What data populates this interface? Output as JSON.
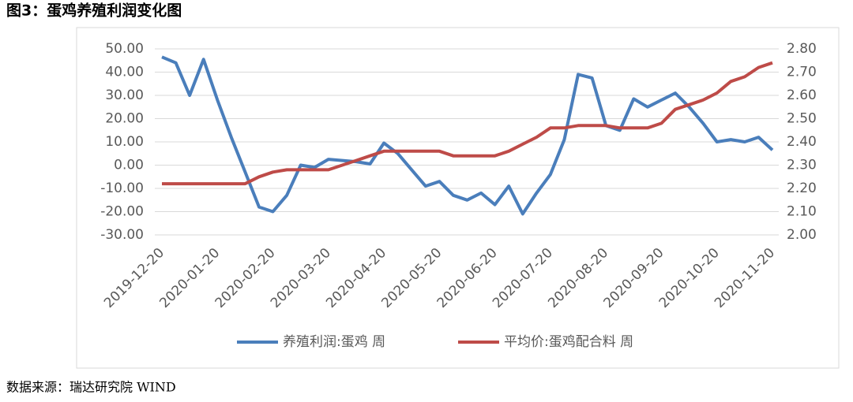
{
  "title": "图3：蛋鸡养殖利润变化图",
  "source": "数据来源：瑞达研究院 WIND",
  "chart_data": {
    "type": "line",
    "categories": [
      "2019-12-20",
      null,
      null,
      null,
      "2020-01-20",
      null,
      null,
      null,
      "2020-02-20",
      null,
      null,
      null,
      "2020-03-20",
      null,
      null,
      null,
      "2020-04-20",
      null,
      null,
      null,
      "2020-05-20",
      null,
      null,
      null,
      "2020-06-20",
      null,
      null,
      null,
      "2020-07-20",
      null,
      null,
      null,
      "2020-08-20",
      null,
      null,
      null,
      "2020-09-20",
      null,
      null,
      null,
      "2020-10-20",
      null,
      null,
      null,
      "2020-11-20"
    ],
    "series": [
      {
        "name": "养殖利润:蛋鸡 周",
        "color": "#4a7ebb",
        "axis": "y",
        "values": [
          46.5,
          44,
          30,
          45.5,
          28,
          12,
          -3,
          -18,
          -20,
          -13,
          0,
          -1,
          2.5,
          2,
          1.5,
          0.5,
          9.5,
          5,
          -2,
          -9,
          -7,
          -13,
          -15,
          -12,
          -17,
          -9,
          -21,
          -12,
          -4,
          11,
          39,
          37.5,
          17,
          15,
          28.5,
          25,
          28,
          31,
          25,
          18,
          10,
          11,
          10,
          12,
          6.5
        ]
      },
      {
        "name": "平均价:蛋鸡配合料 周",
        "color": "#be4b48",
        "axis": "y2",
        "values": [
          2.22,
          2.22,
          2.22,
          2.22,
          2.22,
          2.22,
          2.22,
          2.25,
          2.27,
          2.28,
          2.28,
          2.28,
          2.28,
          2.3,
          2.32,
          2.34,
          2.36,
          2.36,
          2.36,
          2.36,
          2.36,
          2.34,
          2.34,
          2.34,
          2.34,
          2.36,
          2.39,
          2.42,
          2.46,
          2.46,
          2.47,
          2.47,
          2.47,
          2.46,
          2.46,
          2.46,
          2.48,
          2.54,
          2.56,
          2.58,
          2.61,
          2.66,
          2.68,
          2.72,
          2.74
        ]
      }
    ],
    "ylim": [
      -30,
      50
    ],
    "yticks": [
      {
        "value": -30,
        "label": "-30.00"
      },
      {
        "value": -20,
        "label": "-20.00"
      },
      {
        "value": -10,
        "label": "-10.00"
      },
      {
        "value": 0,
        "label": "0.00"
      },
      {
        "value": 10,
        "label": "10.00"
      },
      {
        "value": 20,
        "label": "20.00"
      },
      {
        "value": 30,
        "label": "30.00"
      },
      {
        "value": 40,
        "label": "40.00"
      },
      {
        "value": 50,
        "label": "50.00"
      }
    ],
    "y2lim": [
      2,
      2.8
    ],
    "y2ticks": [
      {
        "value": 2,
        "label": "2.00"
      },
      {
        "value": 2.1,
        "label": "2.10"
      },
      {
        "value": 2.2,
        "label": "2.20"
      },
      {
        "value": 2.3,
        "label": "2.30"
      },
      {
        "value": 2.4,
        "label": "2.40"
      },
      {
        "value": 2.5,
        "label": "2.50"
      },
      {
        "value": 2.6,
        "label": "2.60"
      },
      {
        "value": 2.7,
        "label": "2.70"
      },
      {
        "value": 2.8,
        "label": "2.80"
      }
    ],
    "grid": true,
    "legend": "bottom"
  }
}
